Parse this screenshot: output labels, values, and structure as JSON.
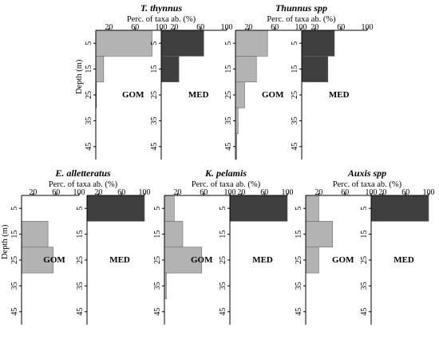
{
  "chart_data": [
    {
      "type": "bar",
      "title": "T. thynnus",
      "xlabel": "Perc. of taxa ab. (%)",
      "ylabel": "Depth (m)",
      "xlim": [
        0,
        100
      ],
      "x_ticks": [
        "20",
        "60",
        "100"
      ],
      "y_ticks": [
        "5",
        "15",
        "25",
        "35",
        "45"
      ],
      "categories": [
        "0-10",
        "10-20",
        "20-30",
        "30-40",
        "40-50"
      ],
      "series": [
        {
          "name": "GOM",
          "color": "#b3b3b3",
          "values": [
            86,
            12,
            1,
            0,
            0
          ]
        },
        {
          "name": "MED",
          "color": "#3f3f3f",
          "values": [
            65,
            27,
            0,
            0,
            0
          ]
        }
      ]
    },
    {
      "type": "bar",
      "title": "Thunnus spp",
      "xlabel": "Perc. of taxa ab. (%)",
      "ylabel": "",
      "xlim": [
        0,
        100
      ],
      "x_ticks": [
        "20",
        "60",
        "100"
      ],
      "y_ticks": [
        "5",
        "15",
        "25",
        "35",
        "45"
      ],
      "categories": [
        "0-10",
        "10-20",
        "20-30",
        "30-40",
        "40-50"
      ],
      "series": [
        {
          "name": "GOM",
          "color": "#b3b3b3",
          "values": [
            49,
            32,
            14,
            4,
            2
          ]
        },
        {
          "name": "MED",
          "color": "#3f3f3f",
          "values": [
            50,
            40,
            0,
            0,
            0
          ]
        }
      ]
    },
    {
      "type": "bar",
      "title": "E. alletteratus",
      "xlabel": "Perc. of taxa ab. (%)",
      "ylabel": "Depth (m)",
      "xlim": [
        0,
        100
      ],
      "x_ticks": [
        "20",
        "60",
        "100"
      ],
      "y_ticks": [
        "5",
        "15",
        "25",
        "35",
        "45"
      ],
      "categories": [
        "0-10",
        "10-20",
        "20-30",
        "30-40",
        "40-50"
      ],
      "series": [
        {
          "name": "GOM",
          "color": "#b3b3b3",
          "values": [
            0,
            46,
            55,
            0,
            0
          ]
        },
        {
          "name": "MED",
          "color": "#3f3f3f",
          "values": [
            100,
            0,
            0,
            0,
            0
          ]
        }
      ]
    },
    {
      "type": "bar",
      "title": "K. pelamis",
      "xlabel": "Perc. of taxa ab. (%)",
      "ylabel": "",
      "xlim": [
        0,
        100
      ],
      "x_ticks": [
        "20",
        "60",
        "100"
      ],
      "y_ticks": [
        "5",
        "15",
        "25",
        "35",
        "45"
      ],
      "categories": [
        "0-10",
        "10-20",
        "20-30",
        "30-40",
        "40-50"
      ],
      "series": [
        {
          "name": "GOM",
          "color": "#b3b3b3",
          "values": [
            15,
            28,
            57,
            3,
            0
          ]
        },
        {
          "name": "MED",
          "color": "#3f3f3f",
          "values": [
            100,
            0,
            0,
            0,
            0
          ]
        }
      ]
    },
    {
      "type": "bar",
      "title": "Auxis spp",
      "xlabel": "Perc. of taxa ab. (%)",
      "ylabel": "",
      "xlim": [
        0,
        100
      ],
      "x_ticks": [
        "20",
        "60",
        "100"
      ],
      "y_ticks": [
        "5",
        "15",
        "25",
        "35",
        "45"
      ],
      "categories": [
        "0-10",
        "10-20",
        "20-30",
        "30-40",
        "40-50"
      ],
      "series": [
        {
          "name": "GOM",
          "color": "#b3b3b3",
          "values": [
            20,
            41,
            20,
            0,
            0
          ]
        },
        {
          "name": "MED",
          "color": "#3f3f3f",
          "values": [
            100,
            0,
            0,
            0,
            0
          ]
        }
      ]
    }
  ]
}
